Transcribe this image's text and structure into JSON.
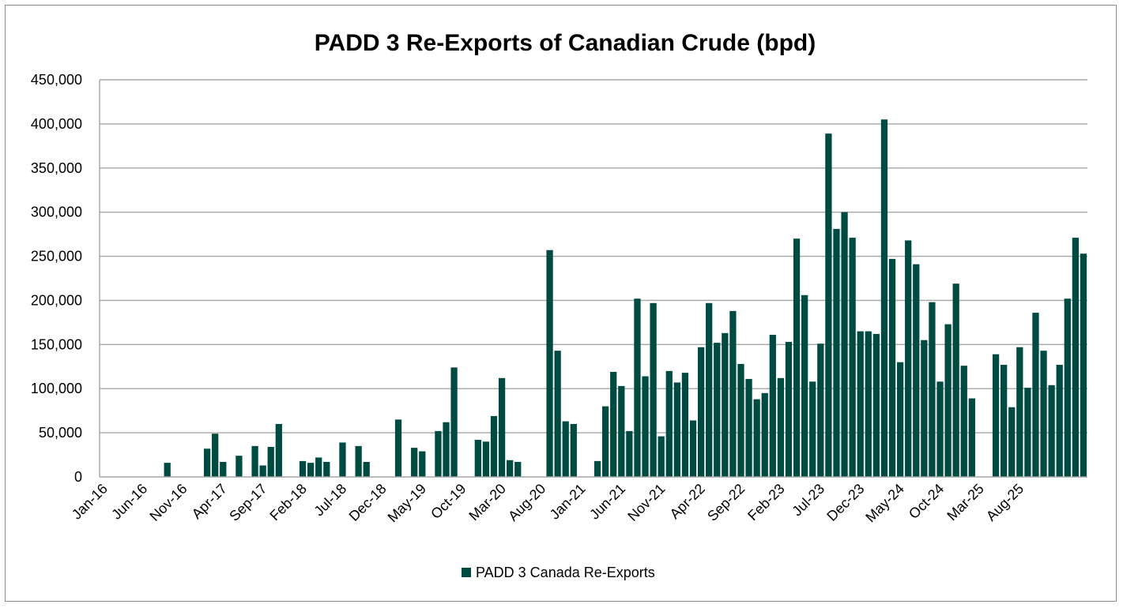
{
  "chart_data": {
    "type": "bar",
    "title": "PADD 3 Re-Exports of Canadian Crude (bpd)",
    "xlabel": "",
    "ylabel": "",
    "ylim": [
      0,
      450000
    ],
    "yticks": [
      0,
      50000,
      100000,
      150000,
      200000,
      250000,
      300000,
      350000,
      400000,
      450000
    ],
    "ytick_labels": [
      "0",
      "50,000",
      "100,000",
      "150,000",
      "200,000",
      "250,000",
      "300,000",
      "350,000",
      "400,000",
      "450,000"
    ],
    "grid": true,
    "legend_position": "bottom-center",
    "bar_color": "#004B41",
    "x_tick_labels": [
      "Jan-16",
      "Jun-16",
      "Nov-16",
      "Apr-17",
      "Sep-17",
      "Feb-18",
      "Jul-18",
      "Dec-18",
      "May-19",
      "Oct-19",
      "Mar-20",
      "Aug-20",
      "Jan-21",
      "Jun-21",
      "Nov-21",
      "Apr-22",
      "Sep-22",
      "Feb-23",
      "Jul-23",
      "Dec-23",
      "May-24",
      "Oct-24",
      "Mar-25",
      "Aug-25"
    ],
    "x_tick_every": 5,
    "categories_start": "Jan-16",
    "series": [
      {
        "name": "PADD 3 Canada Re-Exports",
        "values": [
          0,
          0,
          0,
          0,
          0,
          0,
          0,
          0,
          16000,
          0,
          0,
          0,
          0,
          32000,
          49000,
          17000,
          0,
          24000,
          0,
          35000,
          13000,
          34000,
          60000,
          0,
          0,
          18000,
          16000,
          22000,
          17000,
          0,
          39000,
          0,
          35000,
          17000,
          0,
          0,
          0,
          65000,
          0,
          33000,
          29000,
          0,
          52000,
          62000,
          124000,
          0,
          0,
          42000,
          40000,
          69000,
          112000,
          19000,
          17000,
          0,
          0,
          0,
          257000,
          143000,
          63000,
          60000,
          0,
          0,
          18000,
          80000,
          119000,
          103000,
          52000,
          202000,
          114000,
          197000,
          46000,
          120000,
          107000,
          118000,
          64000,
          147000,
          197000,
          152000,
          163000,
          188000,
          128000,
          111000,
          88000,
          95000,
          161000,
          112000,
          153000,
          270000,
          206000,
          108000,
          151000,
          389000,
          281000,
          300000,
          271000,
          165000,
          165000,
          162000,
          405000,
          247000,
          130000,
          268000,
          241000,
          155000,
          198000,
          108000,
          173000,
          219000,
          126000,
          89000,
          0,
          0,
          139000,
          127000,
          79000,
          147000,
          101000,
          186000,
          143000,
          104000,
          127000,
          202000,
          271000,
          253000
        ]
      }
    ]
  }
}
